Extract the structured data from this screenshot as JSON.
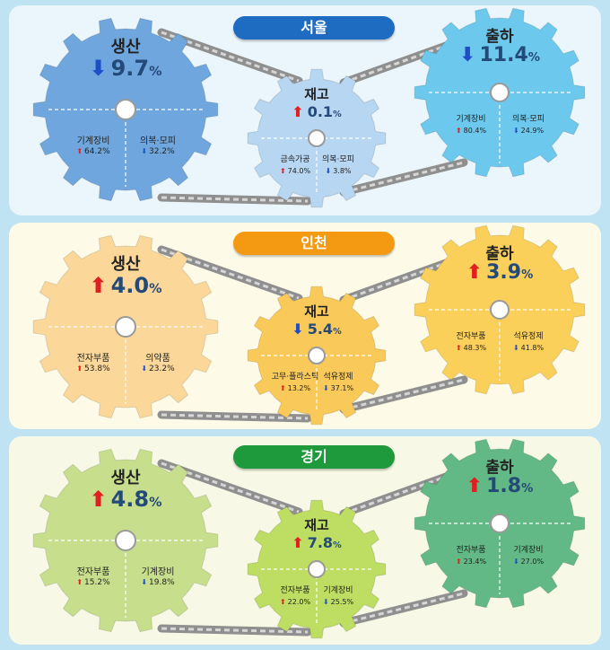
{
  "colors": {
    "up_arrow": "#e02020",
    "down_arrow": "#1f4fc8"
  },
  "regions": [
    {
      "name": "서울",
      "badge_color": "#1e6cc1",
      "panel_bg": "#eaf6fb",
      "gears": {
        "production": {
          "label": "생산",
          "direction": "down",
          "value": "9.7",
          "unit": "%",
          "items": [
            {
              "name": "기계장비",
              "direction": "up",
              "value": "64.2%"
            },
            {
              "name": "의복·모피",
              "direction": "down",
              "value": "32.2%"
            }
          ]
        },
        "inventory": {
          "label": "재고",
          "direction": "up",
          "value": "0.1",
          "unit": "%",
          "items": [
            {
              "name": "금속가공",
              "direction": "up",
              "value": "74.0%"
            },
            {
              "name": "의복·모피",
              "direction": "down",
              "value": "3.8%"
            }
          ]
        },
        "shipment": {
          "label": "출하",
          "direction": "down",
          "value": "11.4",
          "unit": "%",
          "items": [
            {
              "name": "기계장비",
              "direction": "up",
              "value": "80.4%"
            },
            {
              "name": "의복·모피",
              "direction": "down",
              "value": "24.9%"
            }
          ]
        }
      }
    },
    {
      "name": "인천",
      "badge_color": "#f39a12",
      "panel_bg": "#fdfbe8",
      "gears": {
        "production": {
          "label": "생산",
          "direction": "up",
          "value": "4.0",
          "unit": "%",
          "items": [
            {
              "name": "전자부품",
              "direction": "up",
              "value": "53.8%"
            },
            {
              "name": "의약품",
              "direction": "down",
              "value": "23.2%"
            }
          ]
        },
        "inventory": {
          "label": "재고",
          "direction": "down",
          "value": "5.4",
          "unit": "%",
          "items": [
            {
              "name": "고무·플라스틱",
              "direction": "up",
              "value": "13.2%"
            },
            {
              "name": "석유정제",
              "direction": "down",
              "value": "37.1%"
            }
          ]
        },
        "shipment": {
          "label": "출하",
          "direction": "up",
          "value": "3.9",
          "unit": "%",
          "items": [
            {
              "name": "전자부품",
              "direction": "up",
              "value": "48.3%"
            },
            {
              "name": "석유정제",
              "direction": "down",
              "value": "41.8%"
            }
          ]
        }
      }
    },
    {
      "name": "경기",
      "badge_color": "#1e9a3c",
      "panel_bg": "#f7f9e6",
      "gears": {
        "production": {
          "label": "생산",
          "direction": "up",
          "value": "4.8",
          "unit": "%",
          "items": [
            {
              "name": "전자부품",
              "direction": "up",
              "value": "15.2%"
            },
            {
              "name": "기계장비",
              "direction": "down",
              "value": "19.8%"
            }
          ]
        },
        "inventory": {
          "label": "재고",
          "direction": "up",
          "value": "7.8",
          "unit": "%",
          "items": [
            {
              "name": "전자부품",
              "direction": "up",
              "value": "22.0%"
            },
            {
              "name": "기계장비",
              "direction": "down",
              "value": "25.5%"
            }
          ]
        },
        "shipment": {
          "label": "출하",
          "direction": "up",
          "value": "1.8",
          "unit": "%",
          "items": [
            {
              "name": "전자부품",
              "direction": "up",
              "value": "23.4%"
            },
            {
              "name": "기계장비",
              "direction": "down",
              "value": "27.0%"
            }
          ]
        }
      }
    }
  ]
}
